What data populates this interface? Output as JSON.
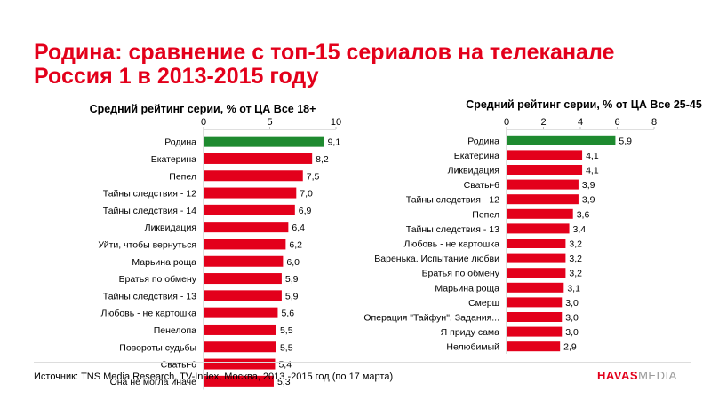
{
  "title": "Родина: сравнение с топ-15 сериалов на телеканале Россия 1 в 2013-2015 году",
  "source_text": "Источник: TNS Media Research, TV-Index, Москва, 2013 -2015 год (по 17 марта)",
  "logo": {
    "part1": "HAVAS",
    "part2": "MEDIA"
  },
  "colors": {
    "accent": "#e3001b",
    "highlight": "#1e8a2f",
    "bar": "#e3001b"
  },
  "chart_data": [
    {
      "type": "bar",
      "orientation": "horizontal",
      "title": "Средний рейтинг серии, % от ЦА Все 18+",
      "xlim": [
        0,
        10
      ],
      "ticks": [
        0,
        5,
        10
      ],
      "highlight_category": "Родина",
      "categories": [
        "Родина",
        "Екатерина",
        "Пепел",
        "Тайны следствия - 12",
        "Тайны следствия - 14",
        "Ликвидация",
        "Уйти, чтобы вернуться",
        "Марьина роща",
        "Братья по обмену",
        "Тайны следствия - 13",
        "Любовь - не картошка",
        "Пенелопа",
        "Повороты судьбы",
        "Сваты-6",
        "Она не могла иначе"
      ],
      "values": [
        9.1,
        8.2,
        7.5,
        7.0,
        6.9,
        6.4,
        6.2,
        6.0,
        5.9,
        5.9,
        5.6,
        5.5,
        5.5,
        5.4,
        5.3
      ],
      "value_labels": [
        "9,1",
        "8,2",
        "7,5",
        "7,0",
        "6,9",
        "6,4",
        "6,2",
        "6,0",
        "5,9",
        "5,9",
        "5,6",
        "5,5",
        "5,5",
        "5,4",
        "5,3"
      ]
    },
    {
      "type": "bar",
      "orientation": "horizontal",
      "title": "Средний рейтинг серии, % от ЦА Все 25-45",
      "xlim": [
        0,
        8
      ],
      "ticks": [
        0,
        2,
        4,
        6,
        8
      ],
      "highlight_category": "Родина",
      "categories": [
        "Родина",
        "Екатерина",
        "Ликвидация",
        "Сваты-6",
        "Тайны следствия - 12",
        "Пепел",
        "Тайны следствия - 13",
        "Любовь - не картошка",
        "Варенька. Испытание любви",
        "Братья по обмену",
        "Марьина роща",
        "Смерш",
        "Операция \"Тайфун\". Задания...",
        "Я приду сама",
        "Нелюбимый"
      ],
      "values": [
        5.9,
        4.1,
        4.1,
        3.9,
        3.9,
        3.6,
        3.4,
        3.2,
        3.2,
        3.2,
        3.1,
        3.0,
        3.0,
        3.0,
        2.9
      ],
      "value_labels": [
        "5,9",
        "4,1",
        "4,1",
        "3,9",
        "3,9",
        "3,6",
        "3,4",
        "3,2",
        "3,2",
        "3,2",
        "3,1",
        "3,0",
        "3,0",
        "3,0",
        "2,9"
      ]
    }
  ]
}
